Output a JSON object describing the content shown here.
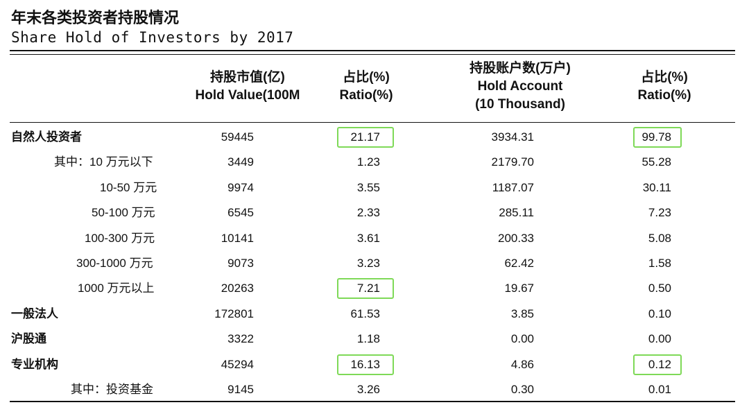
{
  "title": {
    "cn": "年末各类投资者持股情况",
    "en": "Share Hold of Investors by 2017"
  },
  "headers": [
    {
      "cn": "持股市值(亿)",
      "en": "Hold Value(100M",
      "en2": ""
    },
    {
      "cn": "占比(%)",
      "en": "Ratio(%)",
      "en2": ""
    },
    {
      "cn": "持股账户数(万户)",
      "en": "Hold Account",
      "en2": "(10 Thousand)"
    },
    {
      "cn": "占比(%)",
      "en": "Ratio(%)",
      "en2": ""
    }
  ],
  "rows": [
    {
      "label": "自然人投资者",
      "value": "59445",
      "ratio": "21.17",
      "account": "3934.31",
      "account_ratio": "99.78",
      "highlight_ratio": true,
      "highlight_account_ratio": true
    },
    {
      "label": "其中：10 万元以下",
      "value": "3449",
      "ratio": "1.23",
      "account": "2179.70",
      "account_ratio": "55.28",
      "highlight_ratio": false,
      "highlight_account_ratio": false
    },
    {
      "label": "10-50 万元",
      "value": "9974",
      "ratio": "3.55",
      "account": "1187.07",
      "account_ratio": "30.11",
      "highlight_ratio": false,
      "highlight_account_ratio": false
    },
    {
      "label": "50-100 万元",
      "value": "6545",
      "ratio": "2.33",
      "account": "285.11",
      "account_ratio": "7.23",
      "highlight_ratio": false,
      "highlight_account_ratio": false
    },
    {
      "label": "100-300 万元",
      "value": "10141",
      "ratio": "3.61",
      "account": "200.33",
      "account_ratio": "5.08",
      "highlight_ratio": false,
      "highlight_account_ratio": false
    },
    {
      "label": "300-1000 万元",
      "value": "9073",
      "ratio": "3.23",
      "account": "62.42",
      "account_ratio": "1.58",
      "highlight_ratio": false,
      "highlight_account_ratio": false
    },
    {
      "label": "1000 万元以上",
      "value": "20263",
      "ratio": "7.21",
      "account": "19.67",
      "account_ratio": "0.50",
      "highlight_ratio": true,
      "highlight_account_ratio": false
    },
    {
      "label": "一般法人",
      "value": "172801",
      "ratio": "61.53",
      "account": "3.85",
      "account_ratio": "0.10",
      "highlight_ratio": false,
      "highlight_account_ratio": false
    },
    {
      "label": "沪股通",
      "value": "3322",
      "ratio": "1.18",
      "account": "0.00",
      "account_ratio": "0.00",
      "highlight_ratio": false,
      "highlight_account_ratio": false
    },
    {
      "label": "专业机构",
      "value": "45294",
      "ratio": "16.13",
      "account": "4.86",
      "account_ratio": "0.12",
      "highlight_ratio": true,
      "highlight_account_ratio": true
    },
    {
      "label": "其中：投资基金",
      "value": "9145",
      "ratio": "3.26",
      "account": "0.30",
      "account_ratio": "0.01",
      "highlight_ratio": false,
      "highlight_account_ratio": false
    }
  ],
  "colors": {
    "highlight_border": "#7ed957",
    "text": "#111111"
  }
}
